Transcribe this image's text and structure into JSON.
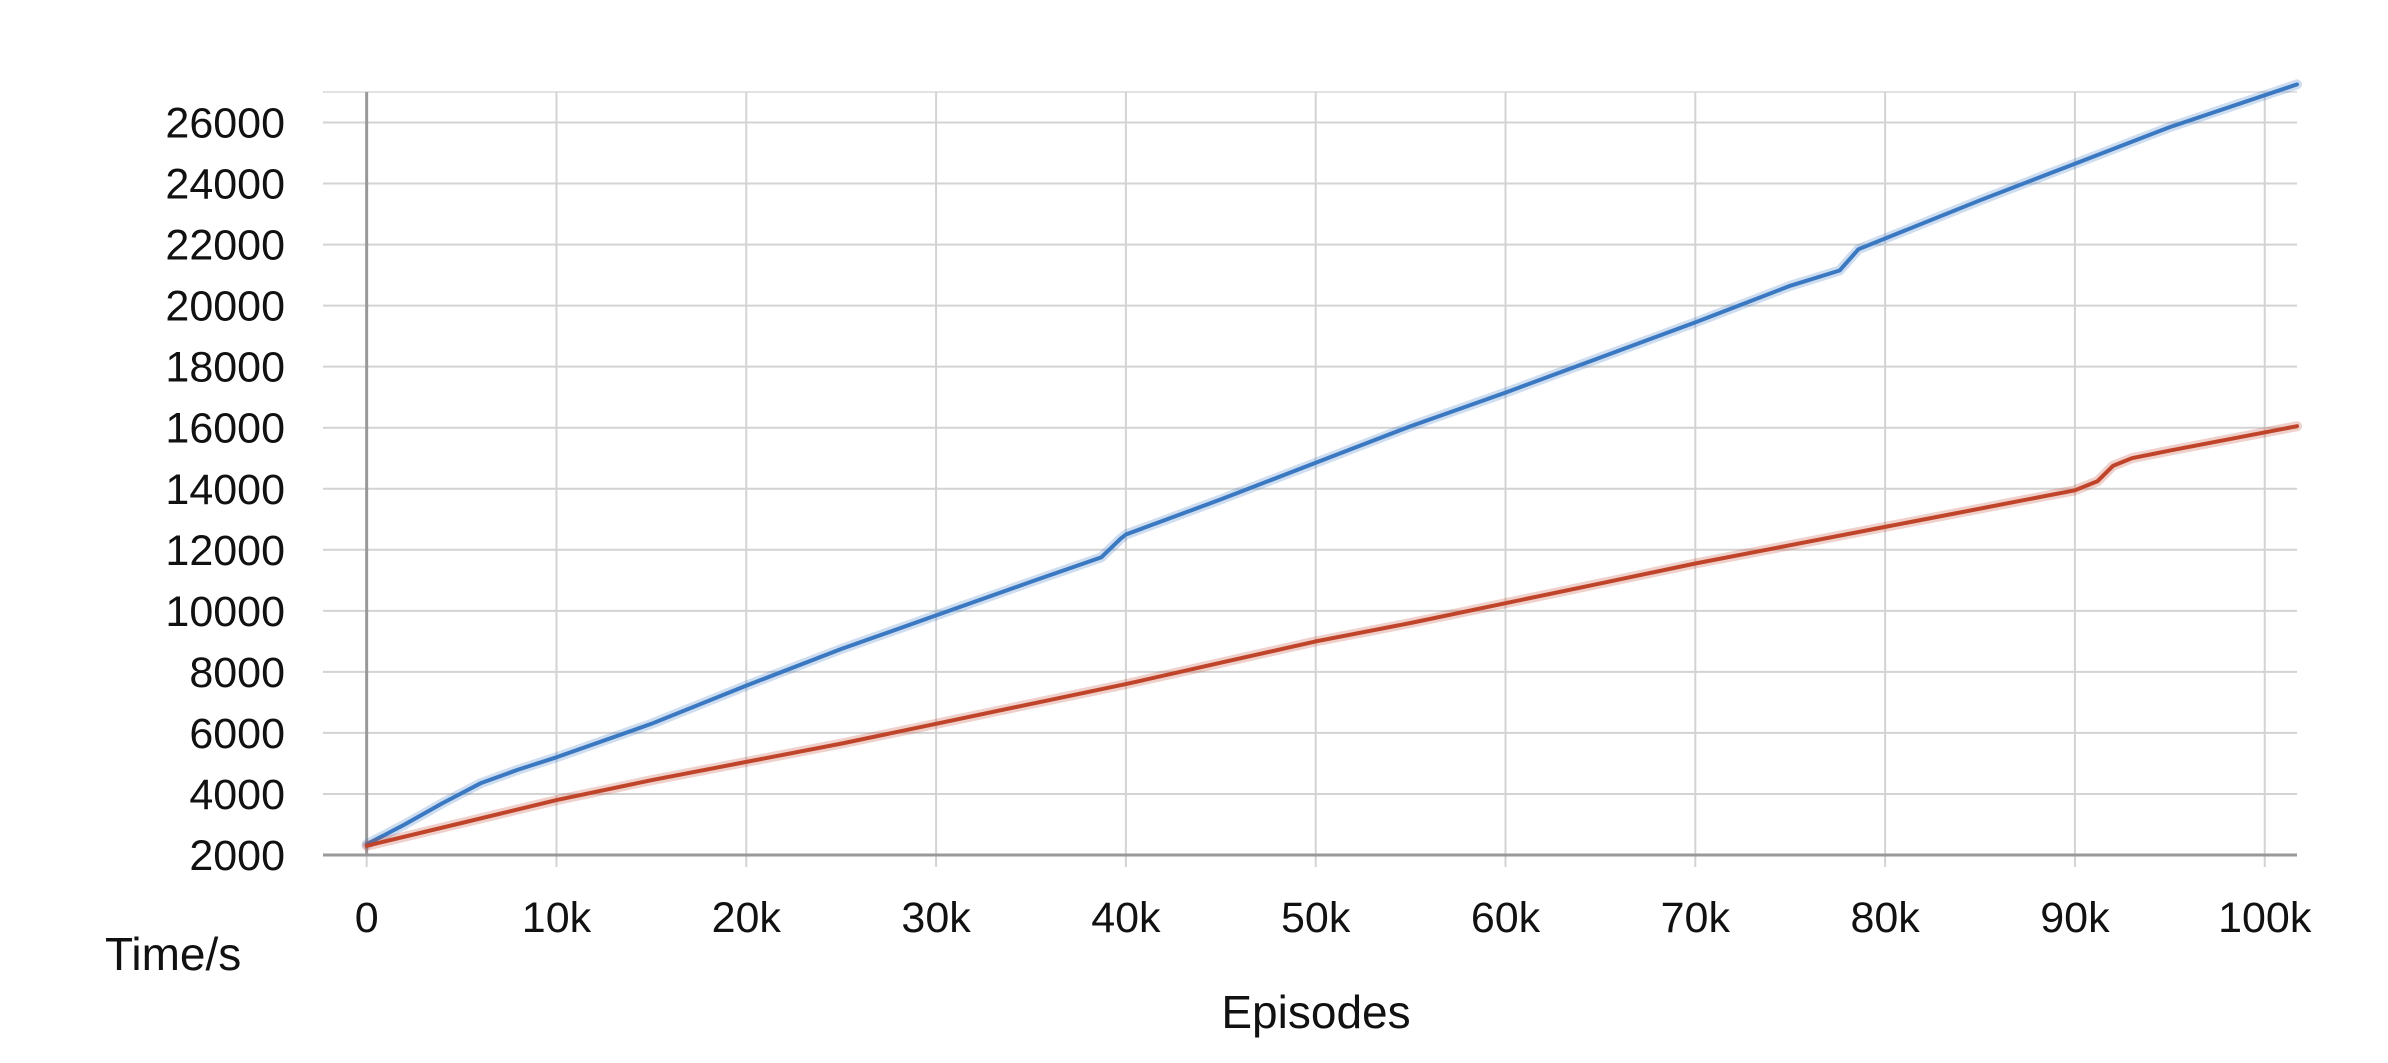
{
  "chart_data": {
    "type": "line",
    "title": "",
    "xlabel": "Episodes",
    "ylabel": "Time/s",
    "xlim": [
      -2300,
      101700
    ],
    "ylim": [
      2000,
      27000
    ],
    "x_ticks": [
      0,
      10000,
      20000,
      30000,
      40000,
      50000,
      60000,
      70000,
      80000,
      90000,
      100000
    ],
    "x_tick_labels": [
      "0",
      "10k",
      "20k",
      "30k",
      "40k",
      "50k",
      "60k",
      "70k",
      "80k",
      "90k",
      "100k"
    ],
    "y_ticks": [
      2000,
      4000,
      6000,
      8000,
      10000,
      12000,
      14000,
      16000,
      18000,
      20000,
      22000,
      24000,
      26000
    ],
    "y_tick_labels": [
      "2000",
      "4000",
      "6000",
      "8000",
      "10000",
      "12000",
      "14000",
      "16000",
      "18000",
      "20000",
      "22000",
      "24000",
      "26000"
    ],
    "grid": true,
    "legend": "none",
    "series": [
      {
        "color": "#3a78c2",
        "x": [
          0,
          2000,
          4000,
          6000,
          8000,
          10000,
          15000,
          20000,
          25000,
          30000,
          35000,
          38700,
          39700,
          40000,
          45000,
          50000,
          55000,
          60000,
          65000,
          70000,
          75000,
          77600,
          78600,
          80000,
          85000,
          90000,
          95000,
          101700
        ],
        "y": [
          2350,
          3000,
          3700,
          4350,
          4800,
          5200,
          6300,
          7550,
          8750,
          9850,
          10950,
          11750,
          12350,
          12500,
          13650,
          14850,
          16050,
          17150,
          18300,
          19450,
          20650,
          21150,
          21850,
          22200,
          23450,
          24650,
          25850,
          27250
        ]
      },
      {
        "color": "#c0442a",
        "x": [
          0,
          5000,
          10000,
          15000,
          20000,
          25000,
          30000,
          35000,
          40000,
          45000,
          50000,
          55000,
          60000,
          65000,
          70000,
          75000,
          80000,
          85000,
          90000,
          91200,
          92000,
          93000,
          95000,
          101700
        ],
        "y": [
          2300,
          3050,
          3800,
          4450,
          5050,
          5650,
          6300,
          6950,
          7600,
          8300,
          9000,
          9600,
          10250,
          10900,
          11550,
          12150,
          12750,
          13350,
          13950,
          14250,
          14750,
          15000,
          15250,
          16050
        ]
      }
    ]
  }
}
